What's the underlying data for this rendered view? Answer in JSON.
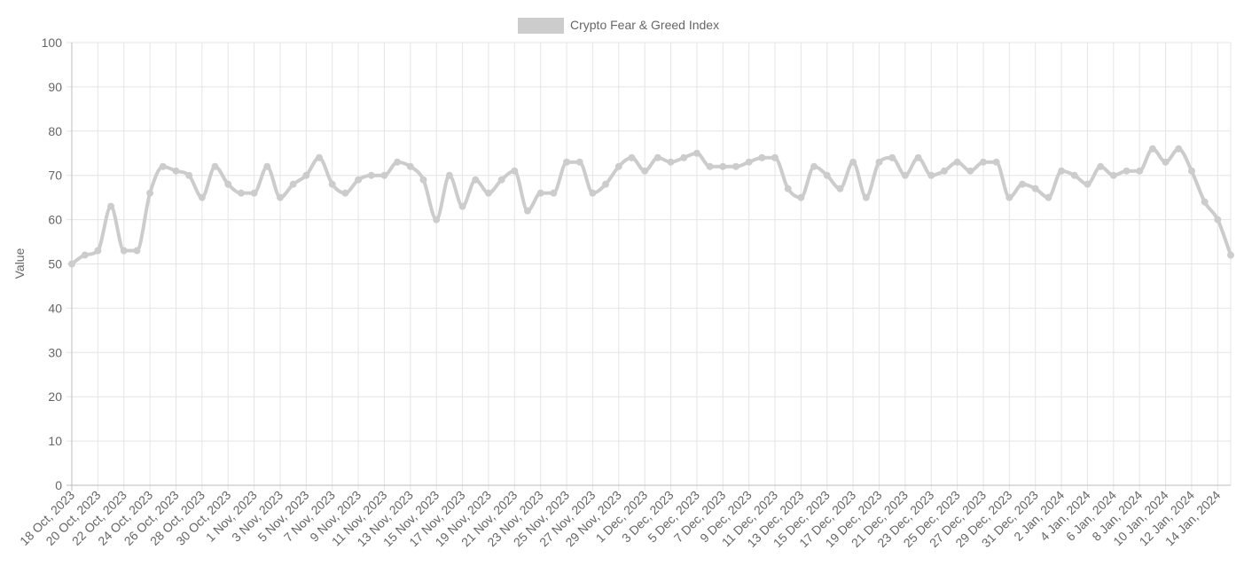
{
  "chart_data": {
    "type": "line",
    "title": "",
    "xlabel": "",
    "ylabel": "Value",
    "ylim": [
      0,
      100
    ],
    "y_ticks": [
      0,
      10,
      20,
      30,
      40,
      50,
      60,
      70,
      80,
      90,
      100
    ],
    "grid": true,
    "legend_position": "top-center",
    "line_color": "#cccccc",
    "x": [
      "18 Oct, 2023",
      "19 Oct, 2023",
      "20 Oct, 2023",
      "21 Oct, 2023",
      "22 Oct, 2023",
      "23 Oct, 2023",
      "24 Oct, 2023",
      "25 Oct, 2023",
      "26 Oct, 2023",
      "27 Oct, 2023",
      "28 Oct, 2023",
      "29 Oct, 2023",
      "30 Oct, 2023",
      "31 Oct, 2023",
      "1 Nov, 2023",
      "2 Nov, 2023",
      "3 Nov, 2023",
      "4 Nov, 2023",
      "5 Nov, 2023",
      "6 Nov, 2023",
      "7 Nov, 2023",
      "8 Nov, 2023",
      "9 Nov, 2023",
      "10 Nov, 2023",
      "11 Nov, 2023",
      "12 Nov, 2023",
      "13 Nov, 2023",
      "14 Nov, 2023",
      "15 Nov, 2023",
      "16 Nov, 2023",
      "17 Nov, 2023",
      "18 Nov, 2023",
      "19 Nov, 2023",
      "20 Nov, 2023",
      "21 Nov, 2023",
      "22 Nov, 2023",
      "23 Nov, 2023",
      "24 Nov, 2023",
      "25 Nov, 2023",
      "26 Nov, 2023",
      "27 Nov, 2023",
      "28 Nov, 2023",
      "29 Nov, 2023",
      "30 Nov, 2023",
      "1 Dec, 2023",
      "2 Dec, 2023",
      "3 Dec, 2023",
      "4 Dec, 2023",
      "5 Dec, 2023",
      "6 Dec, 2023",
      "7 Dec, 2023",
      "8 Dec, 2023",
      "9 Dec, 2023",
      "10 Dec, 2023",
      "11 Dec, 2023",
      "12 Dec, 2023",
      "13 Dec, 2023",
      "14 Dec, 2023",
      "15 Dec, 2023",
      "16 Dec, 2023",
      "17 Dec, 2023",
      "18 Dec, 2023",
      "19 Dec, 2023",
      "20 Dec, 2023",
      "21 Dec, 2023",
      "22 Dec, 2023",
      "23 Dec, 2023",
      "24 Dec, 2023",
      "25 Dec, 2023",
      "26 Dec, 2023",
      "27 Dec, 2023",
      "28 Dec, 2023",
      "29 Dec, 2023",
      "30 Dec, 2023",
      "31 Dec, 2023",
      "1 Jan, 2024",
      "2 Jan, 2024",
      "3 Jan, 2024",
      "4 Jan, 2024",
      "5 Jan, 2024",
      "6 Jan, 2024",
      "7 Jan, 2024",
      "8 Jan, 2024",
      "9 Jan, 2024",
      "10 Jan, 2024",
      "11 Jan, 2024",
      "12 Jan, 2024",
      "13 Jan, 2024",
      "14 Jan, 2024",
      "15 Jan, 2024"
    ],
    "x_tick_labels": [
      "18 Oct, 2023",
      "20 Oct, 2023",
      "22 Oct, 2023",
      "24 Oct, 2023",
      "26 Oct, 2023",
      "28 Oct, 2023",
      "30 Oct, 2023",
      "1 Nov, 2023",
      "3 Nov, 2023",
      "5 Nov, 2023",
      "7 Nov, 2023",
      "9 Nov, 2023",
      "11 Nov, 2023",
      "13 Nov, 2023",
      "15 Nov, 2023",
      "17 Nov, 2023",
      "19 Nov, 2023",
      "21 Nov, 2023",
      "23 Nov, 2023",
      "25 Nov, 2023",
      "27 Nov, 2023",
      "29 Nov, 2023",
      "1 Dec, 2023",
      "3 Dec, 2023",
      "5 Dec, 2023",
      "7 Dec, 2023",
      "9 Dec, 2023",
      "11 Dec, 2023",
      "13 Dec, 2023",
      "15 Dec, 2023",
      "17 Dec, 2023",
      "19 Dec, 2023",
      "21 Dec, 2023",
      "23 Dec, 2023",
      "25 Dec, 2023",
      "27 Dec, 2023",
      "29 Dec, 2023",
      "31 Dec, 2023",
      "2 Jan, 2024",
      "4 Jan, 2024",
      "6 Jan, 2024",
      "8 Jan, 2024",
      "10 Jan, 2024",
      "12 Jan, 2024",
      "14 Jan, 2024"
    ],
    "series": [
      {
        "name": "Crypto Fear & Greed Index",
        "values": [
          50,
          52,
          53,
          63,
          53,
          53,
          66,
          72,
          71,
          70,
          65,
          72,
          68,
          66,
          66,
          72,
          65,
          68,
          70,
          74,
          68,
          66,
          69,
          70,
          70,
          73,
          72,
          69,
          60,
          70,
          63,
          69,
          66,
          69,
          71,
          62,
          66,
          66,
          73,
          73,
          66,
          68,
          72,
          74,
          71,
          74,
          73,
          74,
          75,
          72,
          72,
          72,
          73,
          74,
          74,
          67,
          65,
          72,
          70,
          67,
          73,
          65,
          73,
          74,
          70,
          74,
          70,
          71,
          73,
          71,
          73,
          73,
          65,
          68,
          67,
          65,
          71,
          70,
          68,
          72,
          70,
          71,
          71,
          76,
          73,
          76,
          71,
          64,
          60,
          52
        ]
      }
    ]
  }
}
